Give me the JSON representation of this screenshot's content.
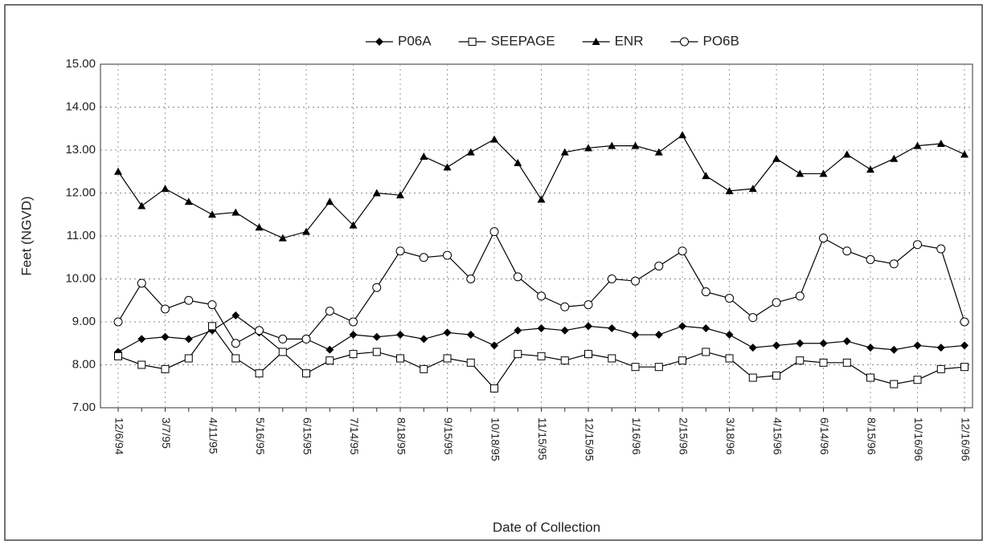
{
  "chart_data": {
    "type": "line",
    "xlabel": "Date of Collection",
    "ylabel": "Feet (NGVD)",
    "categories": [
      "12/6/94",
      null,
      "3/7/95",
      null,
      "4/11/95",
      null,
      "5/16/95",
      null,
      "6/15/95",
      null,
      "7/14/95",
      null,
      "8/18/95",
      null,
      "9/15/95",
      null,
      "10/18/95",
      null,
      "11/15/95",
      null,
      "12/15/95",
      null,
      "1/16/96",
      null,
      "2/15/96",
      null,
      "3/18/96",
      null,
      "4/15/96",
      null,
      "6/14/96",
      null,
      "8/15/96",
      null,
      "10/16/96",
      null,
      "12/16/96"
    ],
    "series": [
      {
        "name": "P06A",
        "color": "#000000",
        "marker": "diamond",
        "values": [
          8.3,
          8.6,
          8.65,
          8.6,
          8.8,
          9.15,
          8.75,
          8.3,
          8.6,
          8.35,
          8.7,
          8.65,
          8.7,
          8.6,
          8.75,
          8.7,
          8.45,
          8.8,
          8.85,
          8.8,
          8.9,
          8.85,
          8.7,
          8.7,
          8.9,
          8.85,
          8.7,
          8.4,
          8.45,
          8.5,
          8.5,
          8.55,
          8.4,
          8.35,
          8.45,
          8.4,
          8.45
        ]
      },
      {
        "name": "SEEPAGE",
        "color": "#000000",
        "marker": "square",
        "values": [
          8.2,
          8.0,
          7.9,
          8.15,
          8.9,
          8.15,
          7.8,
          8.3,
          7.8,
          8.1,
          8.25,
          8.3,
          8.15,
          7.9,
          8.15,
          8.05,
          7.45,
          8.25,
          8.2,
          8.1,
          8.25,
          8.15,
          7.95,
          7.95,
          8.1,
          8.3,
          8.15,
          7.7,
          7.75,
          8.1,
          8.05,
          8.05,
          7.7,
          7.55,
          7.65,
          7.9,
          7.95
        ]
      },
      {
        "name": "ENR",
        "color": "#000000",
        "marker": "triangle",
        "values": [
          12.5,
          11.7,
          12.1,
          11.8,
          11.5,
          11.55,
          11.2,
          10.95,
          11.1,
          11.8,
          11.25,
          12.0,
          11.95,
          12.85,
          12.6,
          12.95,
          13.25,
          12.7,
          11.85,
          12.95,
          13.05,
          13.1,
          13.1,
          12.95,
          13.35,
          12.4,
          12.05,
          12.1,
          12.8,
          12.45,
          12.45,
          12.9,
          12.55,
          12.8,
          13.1,
          13.15,
          12.9
        ]
      },
      {
        "name": "PO6B",
        "color": "#000000",
        "marker": "circle",
        "values": [
          9.0,
          9.9,
          9.3,
          9.5,
          9.4,
          8.5,
          8.8,
          8.6,
          8.6,
          9.25,
          9.0,
          9.8,
          10.65,
          10.5,
          10.55,
          10.0,
          11.1,
          10.05,
          9.6,
          9.35,
          9.4,
          10.0,
          9.95,
          10.3,
          10.65,
          9.7,
          9.55,
          9.1,
          9.45,
          9.6,
          10.95,
          10.65,
          10.45,
          10.35,
          10.8,
          10.7,
          9.0
        ]
      }
    ],
    "ylim": [
      7,
      15
    ],
    "yticks": [
      {
        "value": 7,
        "label": "7.00"
      },
      {
        "value": 8,
        "label": "8.00"
      },
      {
        "value": 9,
        "label": "9.00"
      },
      {
        "value": 10,
        "label": "10.00"
      },
      {
        "value": 11,
        "label": "11.00"
      },
      {
        "value": 12,
        "label": "12.00"
      },
      {
        "value": 13,
        "label": "13.00"
      },
      {
        "value": 14,
        "label": "14.00"
      },
      {
        "value": 15,
        "label": "15.00"
      }
    ],
    "grid": true
  }
}
